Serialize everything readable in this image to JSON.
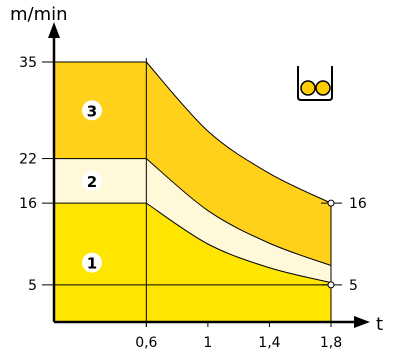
{
  "chart_data": {
    "type": "area",
    "y_unit": "m/min",
    "x_unit": "t",
    "x_ticks": [
      "0,6",
      "1",
      "1,4",
      "1,8"
    ],
    "x_tick_values": [
      0.6,
      1.0,
      1.4,
      1.8
    ],
    "y_ticks": [
      "35",
      "22",
      "16",
      "5"
    ],
    "y_tick_values": [
      35,
      22,
      16,
      5
    ],
    "right_labels": [
      "16",
      "5"
    ],
    "right_label_values": [
      16,
      5
    ],
    "xlim": [
      0,
      1.8
    ],
    "ylim": [
      0,
      35
    ],
    "zones": [
      {
        "name": "1",
        "color": "#ffe600",
        "bottom": 0,
        "top_curve": [
          [
            0,
            16
          ],
          [
            0.6,
            16
          ],
          [
            1.0,
            10.5
          ],
          [
            1.4,
            7.3
          ],
          [
            1.8,
            5.3
          ]
        ]
      },
      {
        "name": "2",
        "color": "#fff9da",
        "top_curve": [
          [
            0,
            22
          ],
          [
            0.6,
            22
          ],
          [
            1.0,
            15.0
          ],
          [
            1.4,
            10.6
          ],
          [
            1.8,
            7.6
          ]
        ]
      },
      {
        "name": "3",
        "color": "#ffd11a",
        "top_curve": [
          [
            0,
            35
          ],
          [
            0.6,
            35
          ],
          [
            1.0,
            25.7
          ],
          [
            1.4,
            20.0
          ],
          [
            1.8,
            16
          ]
        ]
      }
    ],
    "icon": "double-roller-icon",
    "colors": {
      "zone1": "#ffe600",
      "zone2": "#fff9da",
      "zone3": "#ffd11a",
      "outline": "#000000",
      "icon_fill": "#ffcc00"
    }
  }
}
